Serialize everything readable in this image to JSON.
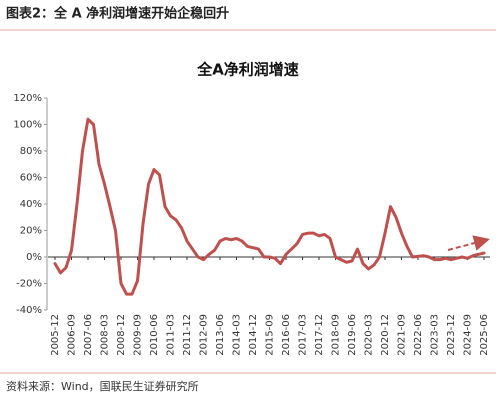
{
  "header": {
    "title": "图表2：全 A 净利润增速开始企稳回升"
  },
  "chart_data": {
    "type": "line",
    "title": "全A净利润增速",
    "categories": [
      "2005-12",
      null,
      null,
      "2006-09",
      null,
      null,
      "2007-06",
      null,
      null,
      "2008-03",
      null,
      null,
      "2008-12",
      null,
      null,
      "2009-09",
      null,
      null,
      "2010-06",
      null,
      null,
      "2011-03",
      null,
      null,
      "2011-12",
      null,
      null,
      "2012-09",
      null,
      null,
      "2013-06",
      null,
      null,
      "2014-03",
      null,
      null,
      "2014-12",
      null,
      null,
      "2015-09",
      null,
      null,
      "2016-06",
      null,
      null,
      "2017-03",
      null,
      null,
      "2017-12",
      null,
      null,
      "2018-09",
      null,
      null,
      "2019-06",
      null,
      null,
      "2020-03",
      null,
      null,
      "2020-12",
      null,
      null,
      "2021-09",
      null,
      null,
      "2022-06",
      null,
      null,
      "2023-03",
      null,
      null,
      "2023-12",
      null,
      null,
      "2024-09",
      null,
      null,
      "2025-06"
    ],
    "series": [
      {
        "color": "#c0504d",
        "values": [
          -5,
          -12,
          -8,
          5,
          40,
          80,
          104,
          100,
          70,
          55,
          38,
          20,
          -20,
          -28,
          -28,
          -18,
          25,
          55,
          66,
          62,
          38,
          31,
          28,
          22,
          12,
          6,
          0,
          -2,
          2,
          5,
          12,
          14,
          13,
          14,
          12,
          8,
          7,
          6,
          0,
          0,
          -1,
          -5,
          2,
          6,
          10,
          17,
          18,
          18,
          16,
          17,
          14,
          0,
          -2,
          -4,
          -3,
          6,
          -5,
          -9,
          -6,
          0,
          18,
          38,
          30,
          18,
          8,
          0,
          0.5,
          1,
          0,
          -2,
          -2,
          -1,
          -2,
          -1,
          0,
          -1,
          1,
          2,
          3
        ]
      }
    ],
    "ylim": [
      -40,
      120
    ],
    "yticks": [
      {
        "value": -40,
        "label": "-40%"
      },
      {
        "value": -20,
        "label": "-20%"
      },
      {
        "value": 0,
        "label": "0%"
      },
      {
        "value": 20,
        "label": "20%"
      },
      {
        "value": 40,
        "label": "40%"
      },
      {
        "value": 60,
        "label": "60%"
      },
      {
        "value": 80,
        "label": "80%"
      },
      {
        "value": 100,
        "label": "100%"
      },
      {
        "value": 120,
        "label": "120%"
      }
    ]
  },
  "footer": {
    "source": "资料来源：Wind，国联民生证券研究所"
  }
}
